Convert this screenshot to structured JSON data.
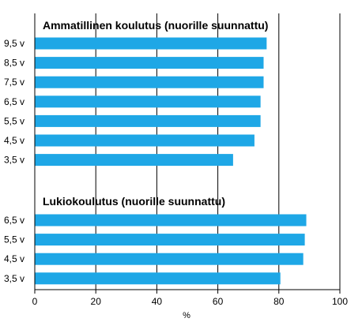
{
  "chart_data": {
    "type": "bar",
    "orientation": "horizontal",
    "xlabel": "%",
    "xlim": [
      0,
      100
    ],
    "xticks": [
      0,
      20,
      40,
      60,
      80,
      100
    ],
    "grid": "vertical gridlines",
    "legend": "none",
    "bar_color": "#1ea7e6",
    "groups": [
      {
        "title": "Ammatillinen koulutus (nuorille suunnattu)",
        "categories": [
          "9,5 v",
          "8,5 v",
          "7,5 v",
          "6,5 v",
          "5,5 v",
          "4,5 v",
          "3,5 v"
        ],
        "values": [
          76,
          75,
          75,
          74,
          74,
          72,
          65
        ]
      },
      {
        "title": "Lukiokoulutus (nuorille suunnattu)",
        "categories": [
          "6,5 v",
          "5,5 v",
          "4,5 v",
          "3,5 v"
        ],
        "values": [
          89,
          88.5,
          88,
          80.5
        ]
      }
    ]
  }
}
